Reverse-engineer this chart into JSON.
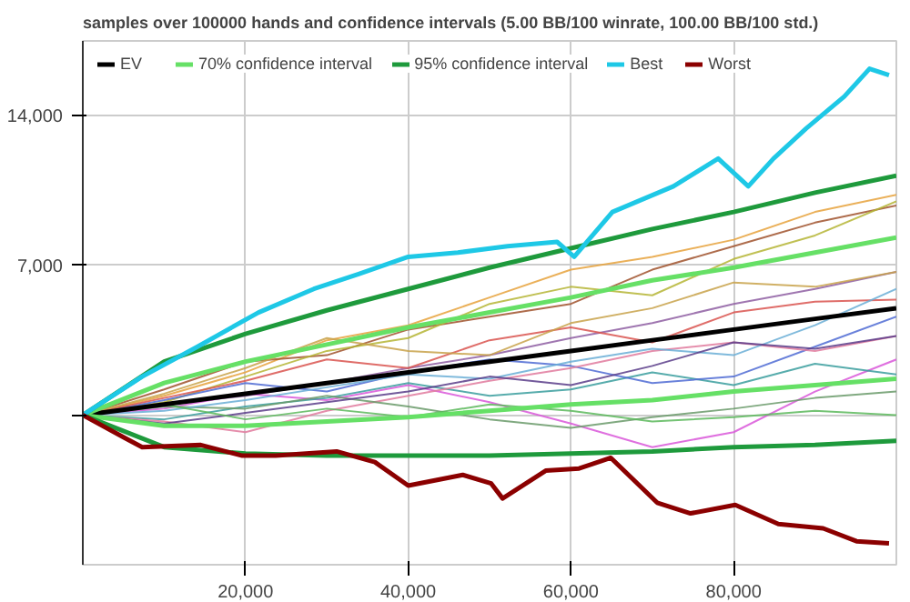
{
  "chart_data": {
    "type": "line",
    "title": "samples over 100000 hands and confidence intervals (5.00 BB/100 winrate, 100.00 BB/100 std.)",
    "xlim": [
      0,
      100000
    ],
    "ylim": [
      -7000,
      17500
    ],
    "xticks": [
      {
        "value": 20000,
        "label": "20,000"
      },
      {
        "value": 40000,
        "label": "40,000"
      },
      {
        "value": 60000,
        "label": "60,000"
      },
      {
        "value": 80000,
        "label": "80,000"
      }
    ],
    "yticks": [
      {
        "value": 0,
        "label": null
      },
      {
        "value": 7000,
        "label": "7,000"
      },
      {
        "value": 14000,
        "label": "14,000"
      }
    ],
    "grid": true,
    "legend": "top left",
    "marker": "none",
    "line_style": "solid",
    "x": [
      0,
      10000,
      20000,
      30000,
      40000,
      50000,
      60000,
      70000,
      80000,
      90000,
      100000
    ],
    "series": [
      {
        "color": "#e6a23c",
        "values": [
          0,
          900,
          2000,
          3500,
          4200,
          5500,
          6800,
          7400,
          8200,
          9500,
          10300
        ]
      },
      {
        "color": "#a0522d",
        "values": [
          0,
          1200,
          2500,
          2800,
          4000,
          4600,
          5200,
          6800,
          7900,
          9000,
          9800
        ]
      },
      {
        "color": "#b5b535",
        "values": [
          0,
          600,
          1800,
          3000,
          3600,
          5200,
          6000,
          5600,
          7300,
          8400,
          10000
        ]
      },
      {
        "color": "#8e5ea2",
        "values": [
          0,
          500,
          900,
          1500,
          2200,
          2800,
          3600,
          4300,
          5200,
          5900,
          6700
        ]
      },
      {
        "color": "#d957d9",
        "values": [
          0,
          300,
          1000,
          700,
          1400,
          600,
          -400,
          -1500,
          -800,
          1100,
          2600
        ]
      },
      {
        "color": "#3a9e9e",
        "values": [
          0,
          -200,
          400,
          800,
          1500,
          900,
          1200,
          2000,
          1400,
          2400,
          1900
        ]
      },
      {
        "color": "#4f6bd4",
        "values": [
          0,
          700,
          1500,
          1100,
          2000,
          2600,
          2300,
          1500,
          1800,
          3200,
          4600
        ]
      },
      {
        "color": "#e07a9e",
        "values": [
          0,
          -300,
          -800,
          200,
          900,
          1600,
          2200,
          3000,
          3400,
          3000,
          3700
        ]
      },
      {
        "color": "#6a9a6a",
        "values": [
          0,
          400,
          300,
          900,
          400,
          -200,
          -600,
          -100,
          300,
          800,
          1100
        ]
      },
      {
        "color": "#d9534f",
        "values": [
          0,
          800,
          1600,
          2600,
          2200,
          3500,
          4100,
          3400,
          4800,
          5300,
          5400
        ]
      },
      {
        "color": "#6aaed6",
        "values": [
          0,
          200,
          700,
          1300,
          1900,
          1700,
          2500,
          3100,
          2800,
          4200,
          5900
        ]
      },
      {
        "color": "#c8a24a",
        "values": [
          0,
          1000,
          2200,
          3600,
          3000,
          2800,
          4300,
          5000,
          6200,
          6000,
          6700
        ]
      },
      {
        "color": "#5a3d8a",
        "values": [
          0,
          -400,
          100,
          600,
          1100,
          1800,
          1400,
          2300,
          3400,
          3100,
          3700
        ]
      },
      {
        "color": "#5cb85c",
        "values": [
          0,
          500,
          -200,
          300,
          -100,
          500,
          200,
          -300,
          -100,
          200,
          0
        ]
      },
      {
        "name": "EV",
        "color": "#000000",
        "values": [
          0,
          500,
          1000,
          1500,
          2000,
          2500,
          3000,
          3500,
          4000,
          4500,
          5000
        ]
      },
      {
        "name": "70% confidence interval",
        "color": "#66e066",
        "values": [
          0,
          1500,
          2500,
          3300,
          4100,
          4800,
          5500,
          6300,
          6900,
          7600,
          8300
        ]
      },
      {
        "color": "#66e066",
        "values": [
          0,
          -500,
          -500,
          -300,
          -100,
          200,
          500,
          700,
          1100,
          1400,
          1700
        ]
      },
      {
        "name": "95% confidence interval",
        "color": "#1e9a3c",
        "values": [
          0,
          2500,
          3800,
          4900,
          5900,
          6900,
          7800,
          8700,
          9500,
          10400,
          11200
        ]
      },
      {
        "color": "#1e9a3c",
        "values": [
          0,
          -1500,
          -1800,
          -1900,
          -1900,
          -1900,
          -1800,
          -1700,
          -1500,
          -1400,
          -1200
        ]
      },
      {
        "name": "Best",
        "color": "#1ec8e6",
        "x": [
          0,
          7300,
          14100,
          21600,
          28400,
          33900,
          40000,
          46100,
          52200,
          58300,
          60400,
          65100,
          72600,
          78100,
          81800,
          84900,
          88900,
          93600,
          96700,
          99100
        ],
        "values": [
          0,
          1800,
          3200,
          4800,
          5900,
          6600,
          7400,
          7600,
          7900,
          8100,
          7400,
          9500,
          10700,
          12000,
          10700,
          12000,
          13400,
          14900,
          16200,
          15900
        ]
      },
      {
        "name": "Worst",
        "color": "#8b0000",
        "x": [
          0,
          5300,
          7300,
          14500,
          19600,
          23700,
          31200,
          35900,
          40000,
          46700,
          50200,
          51600,
          56900,
          61000,
          64900,
          70600,
          74700,
          80200,
          85500,
          91000,
          95100,
          99100
        ],
        "values": [
          0,
          -1100,
          -1500,
          -1400,
          -1900,
          -1900,
          -1700,
          -2200,
          -3300,
          -2800,
          -3200,
          -3900,
          -2600,
          -2500,
          -2000,
          -4100,
          -4600,
          -4200,
          -5100,
          -5300,
          -5900,
          -6000
        ]
      }
    ]
  }
}
